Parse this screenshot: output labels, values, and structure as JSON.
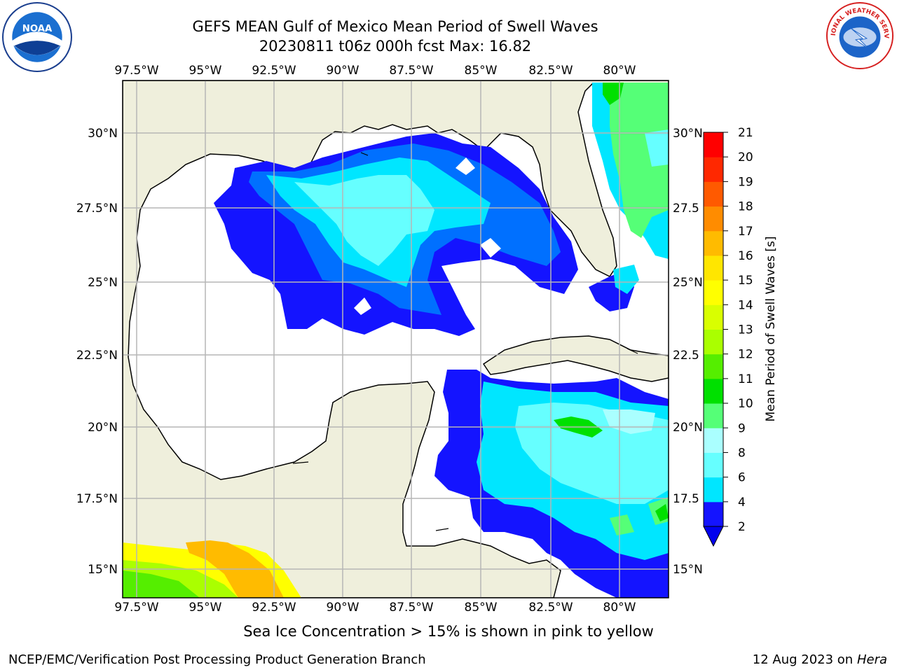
{
  "header": {
    "title_line1": "GEFS MEAN Gulf of Mexico Mean Period of Swell Waves",
    "title_line2": "20230811 t06z 000h fcst   Max: 16.82"
  },
  "logos": {
    "left": "noaa-logo",
    "left_text": "NOAA",
    "right": "national-weather-service-logo",
    "right_text": "NATIONAL WEATHER SERVICE"
  },
  "map": {
    "lon_labels": [
      "97.5°W",
      "95°W",
      "92.5°W",
      "90°W",
      "87.5°W",
      "85°W",
      "82.5°W",
      "80°W"
    ],
    "lat_labels_left": [
      "30°N",
      "27.5°N",
      "25°N",
      "22.5°N",
      "20°N",
      "17.5°N",
      "15°N"
    ],
    "lat_labels_right": [
      "30°N",
      "27.5",
      "25°N",
      "22.5",
      "20°N",
      "17.5",
      "15°N"
    ],
    "land_color": "#efefdc",
    "grid_color": "#b5b5b5"
  },
  "colorbar": {
    "label": "Mean Period of Swell Waves [s]",
    "ticks": [
      "2",
      "4",
      "6",
      "8",
      "9",
      "10",
      "11",
      "12",
      "13",
      "14",
      "15",
      "16",
      "17",
      "18",
      "19",
      "20",
      "21"
    ],
    "colors": [
      "#1414ff",
      "#00e6ff",
      "#66ffff",
      "#aaffff",
      "#55ff77",
      "#00e000",
      "#55ee00",
      "#aaff00",
      "#d9ff00",
      "#ffff00",
      "#ffe600",
      "#ffbb00",
      "#ff8c00",
      "#ff5a00",
      "#ff2800",
      "#ff0000"
    ],
    "extend_color": "#0000ee"
  },
  "footer": {
    "note": "Sea Ice Concentration > 15% is shown in pink to yellow",
    "credit": "NCEP/EMC/Verification Post Processing Product Generation Branch",
    "date": "12 Aug 2023 on",
    "machine": "Hera"
  }
}
